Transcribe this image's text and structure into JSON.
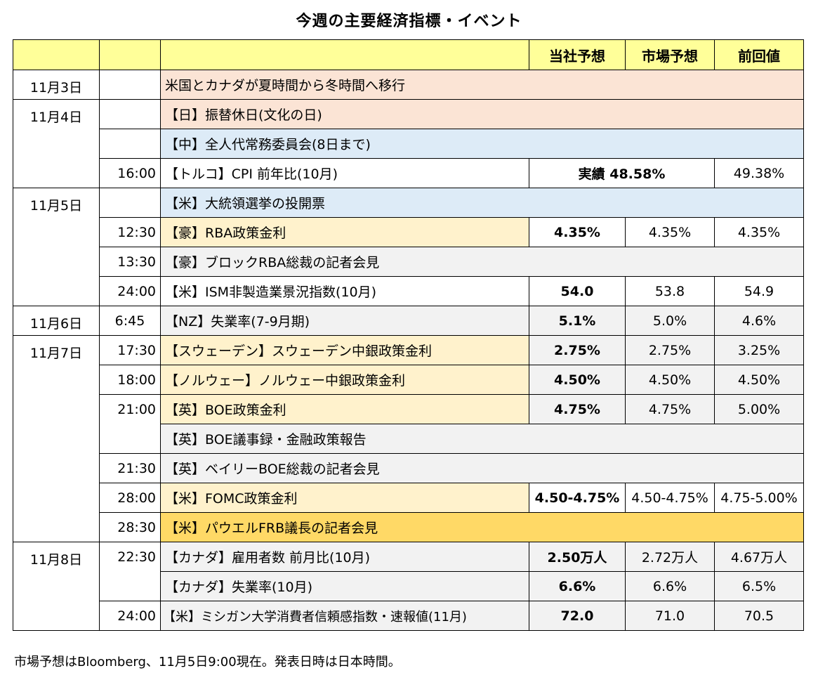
{
  "title": "今週の主要経済指標・イベント",
  "headers": {
    "date": "",
    "time": "",
    "event": "",
    "ours": "当社予想",
    "market": "市場予想",
    "prev": "前回値"
  },
  "dates": {
    "d3": "11月3日",
    "d4": "11月4日",
    "d5": "11月5日",
    "d6": "11月6日",
    "d7": "11月7日",
    "d8": "11月8日"
  },
  "rows": [
    {
      "time": "",
      "event": "米国とカナダが夏時間から冬時間へ移行",
      "ours": "",
      "market": "",
      "prev": ""
    },
    {
      "time": "",
      "event": "【日】振替休日(文化の日)",
      "ours": "",
      "market": "",
      "prev": ""
    },
    {
      "time": "",
      "event": "【中】全人代常務委員会(8日まで)",
      "ours": "",
      "market": "",
      "prev": ""
    },
    {
      "time": "16:00",
      "event": "【トルコ】CPI 前年比(10月)",
      "ours": "実績 48.58%",
      "market": "",
      "prev": "49.38%"
    },
    {
      "time": "",
      "event": "【米】大統領選挙の投開票",
      "ours": "",
      "market": "",
      "prev": ""
    },
    {
      "time": "12:30",
      "event": "【豪】RBA政策金利",
      "ours": "4.35%",
      "market": "4.35%",
      "prev": "4.35%"
    },
    {
      "time": "13:30",
      "event": "【豪】ブロックRBA総裁の記者会見",
      "ours": "",
      "market": "",
      "prev": ""
    },
    {
      "time": "24:00",
      "event": "【米】ISM非製造業景況指数(10月)",
      "ours": "54.0",
      "market": "53.8",
      "prev": "54.9"
    },
    {
      "time": "6:45",
      "event": "【NZ】失業率(7-9月期)",
      "ours": "5.1%",
      "market": "5.0%",
      "prev": "4.6%"
    },
    {
      "time": "17:30",
      "event": "【スウェーデン】スウェーデン中銀政策金利",
      "ours": "2.75%",
      "market": "2.75%",
      "prev": "3.25%"
    },
    {
      "time": "18:00",
      "event": "【ノルウェー】ノルウェー中銀政策金利",
      "ours": "4.50%",
      "market": "4.50%",
      "prev": "4.50%"
    },
    {
      "time": "21:00",
      "event": "【英】BOE政策金利",
      "ours": "4.75%",
      "market": "4.75%",
      "prev": "5.00%"
    },
    {
      "time": "",
      "event": "【英】BOE議事録・金融政策報告",
      "ours": "",
      "market": "",
      "prev": ""
    },
    {
      "time": "21:30",
      "event": "【英】ベイリーBOE総裁の記者会見",
      "ours": "",
      "market": "",
      "prev": ""
    },
    {
      "time": "28:00",
      "event": "【米】FOMC政策金利",
      "ours": "4.50-4.75%",
      "market": "4.50-4.75%",
      "prev": "4.75-5.00%"
    },
    {
      "time": "28:30",
      "event": "【米】パウエルFRB議長の記者会見",
      "ours": "",
      "market": "",
      "prev": ""
    },
    {
      "time": "22:30",
      "event": "【カナダ】雇用者数 前月比(10月)",
      "ours": "2.50万人",
      "market": "2.72万人",
      "prev": "4.67万人"
    },
    {
      "time": "",
      "event": "【カナダ】失業率(10月)",
      "ours": "6.6%",
      "market": "6.6%",
      "prev": "6.5%"
    },
    {
      "time": "24:00",
      "event": "【米】ミシガン大学消費者信頼感指数・速報値(11月)",
      "ours": "72.0",
      "market": "71.0",
      "prev": "70.5"
    }
  ],
  "footnote": "市場予想はBloomberg、11月5日9:00現在。発表日時は日本時間。",
  "colors": {
    "header": "#ffff99",
    "pink": "#fbe4d5",
    "blue": "#ddebf7",
    "grey": "#f2f2f2",
    "cream": "#fff2cc",
    "gold": "#ffd966"
  }
}
